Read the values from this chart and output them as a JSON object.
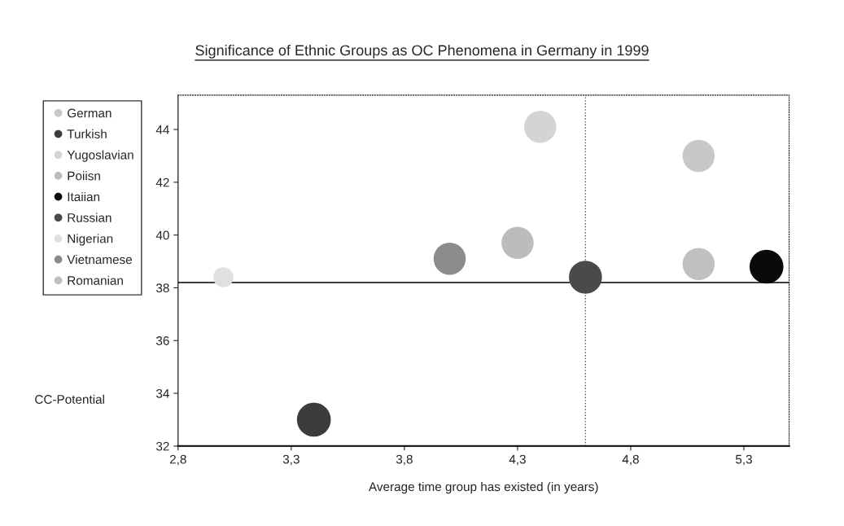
{
  "chart_data": {
    "type": "bubble",
    "title": "Significance of Ethnic Groups as OC Phenomena in Germany in 1999",
    "xlabel": "Average time group has existed (in years)",
    "ylabel": "CC-Potential",
    "series": [
      {
        "name": "German",
        "color": "#c8c8c8",
        "x": [
          5.1
        ],
        "values": [
          43.0
        ],
        "sizes": [
          0.9
        ]
      },
      {
        "name": "Turkish",
        "color": "#3c3c3c",
        "x": [
          3.4
        ],
        "values": [
          33.0
        ],
        "sizes": [
          1
        ]
      },
      {
        "name": "Yugoslavian",
        "color": "#d4d4d4",
        "x": [
          4.4
        ],
        "values": [
          44.1
        ],
        "sizes": [
          0.9
        ]
      },
      {
        "name": "Poiisn",
        "color": "#bcbcbc",
        "x": [
          4.3
        ],
        "values": [
          39.7
        ],
        "sizes": [
          0.9
        ]
      },
      {
        "name": "Itaiian",
        "color": "#0a0a0a",
        "x": [
          5.4
        ],
        "values": [
          38.8
        ],
        "sizes": [
          1
        ]
      },
      {
        "name": "Russian",
        "color": "#4a4a4a",
        "x": [
          4.6
        ],
        "values": [
          38.4
        ],
        "sizes": [
          0.95
        ]
      },
      {
        "name": "Nigerian",
        "color": "#e0e0e0",
        "x": [
          3.0
        ],
        "values": [
          38.4
        ],
        "sizes": [
          0.35
        ]
      },
      {
        "name": "Vietnamese",
        "color": "#8c8c8c",
        "x": [
          4.0
        ],
        "values": [
          39.1
        ],
        "sizes": [
          0.9
        ]
      },
      {
        "name": "Romanian",
        "color": "#c0c0c0",
        "x": [
          5.1
        ],
        "values": [
          38.9
        ],
        "sizes": [
          0.9
        ]
      }
    ],
    "xlim": [
      2.8,
      5.5
    ],
    "xticks": [
      {
        "value": 2.8,
        "label": "2,8"
      },
      {
        "value": 3.3,
        "label": "3,3"
      },
      {
        "value": 3.8,
        "label": "3,8"
      },
      {
        "value": 4.3,
        "label": "4,3"
      },
      {
        "value": 4.8,
        "label": "4,8"
      },
      {
        "value": 5.3,
        "label": "5,3"
      }
    ],
    "ylim": [
      32,
      45.3
    ],
    "yticks": [
      32,
      34,
      36,
      38,
      40,
      42,
      44
    ],
    "ref_lines": [
      {
        "axis": "y",
        "value": 38.2,
        "color": "#000000",
        "line_style": "solid"
      },
      {
        "axis": "x",
        "value": 4.6,
        "color": "#555555",
        "line_style": "dotted"
      }
    ],
    "grid": false,
    "legend": "left"
  }
}
